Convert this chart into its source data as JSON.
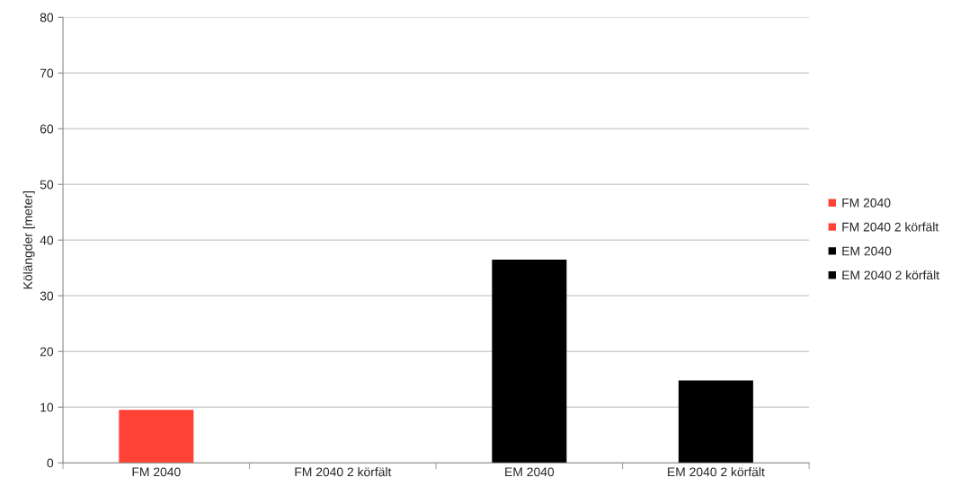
{
  "chart_data": {
    "type": "bar",
    "ylabel": "Kölängder [meter]",
    "categories": [
      "FM 2040",
      "FM 2040 2 körfält",
      "EM 2040",
      "EM 2040 2 körfält"
    ],
    "stacked": true,
    "series": [
      {
        "name": "FM 2040",
        "color": "#ff4136",
        "values": [
          9.5,
          null,
          null,
          null
        ]
      },
      {
        "name": "FM 2040 2 körfält",
        "color": "#ff4136",
        "values": [
          null,
          0,
          null,
          null
        ]
      },
      {
        "name": "EM 2040",
        "color": "#000000",
        "values": [
          null,
          null,
          36.5,
          null
        ]
      },
      {
        "name": "EM 2040 2 körfält",
        "color": "#000000",
        "values": [
          null,
          null,
          null,
          14.8
        ]
      }
    ],
    "ylim": [
      0,
      80
    ],
    "yticks": [
      0,
      10,
      20,
      30,
      40,
      50,
      60,
      70,
      80
    ],
    "grid": "y",
    "legend": "right"
  }
}
